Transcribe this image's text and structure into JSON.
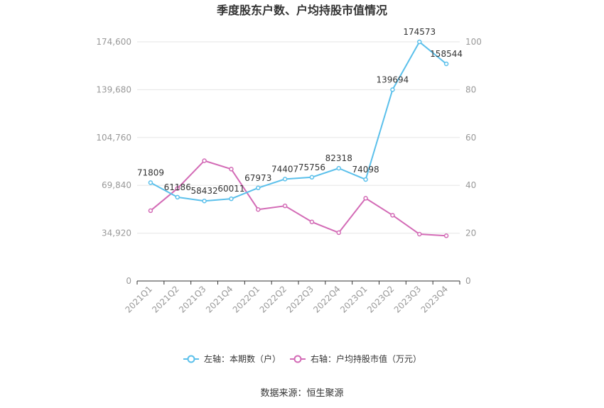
{
  "chart_data": {
    "type": "line",
    "title": "季度股东户数、户均持股市值情况",
    "categories": [
      "2021Q1",
      "2021Q2",
      "2021Q3",
      "2021Q4",
      "2022Q1",
      "2022Q2",
      "2022Q3",
      "2022Q4",
      "2023Q1",
      "2023Q2",
      "2023Q3",
      "2023Q4"
    ],
    "series": [
      {
        "name": "左轴：本期数（户）",
        "axis": "left",
        "color": "#5bc0eb",
        "values": [
          71809,
          61186,
          58432,
          60011,
          67973,
          74407,
          75756,
          82318,
          74098,
          139694,
          174573,
          158544
        ],
        "labels": [
          "71809",
          "61186",
          "58432",
          "60011",
          "67973",
          "74407",
          "75756",
          "82318",
          "74098",
          "139694",
          "174573",
          "158544"
        ]
      },
      {
        "name": "右轴：户均持股市值（万元）",
        "axis": "right",
        "color": "#d36bb6",
        "values": [
          29.4,
          38.7,
          50.3,
          46.8,
          29.9,
          31.4,
          24.7,
          20.2,
          34.6,
          27.5,
          19.6,
          18.9
        ]
      }
    ],
    "yleft": {
      "ticks": [
        "0",
        "34,920",
        "69,840",
        "104,760",
        "139,680",
        "174,600"
      ],
      "min": 0,
      "max": 174600
    },
    "yright": {
      "ticks": [
        "0",
        "20",
        "40",
        "60",
        "80",
        "100"
      ],
      "min": 0,
      "max": 100
    },
    "grid": true,
    "legend_position": "bottom",
    "source": "数据来源：恒生聚源"
  }
}
